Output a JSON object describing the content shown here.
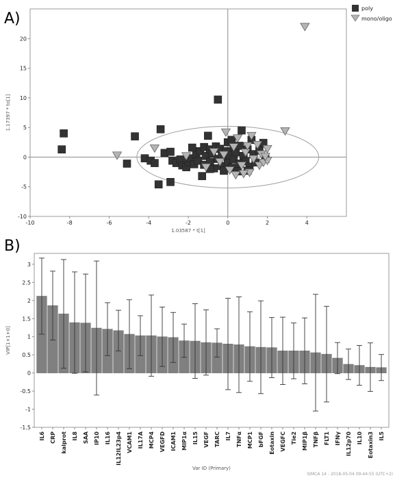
{
  "chart_data": [
    {
      "type": "scatter",
      "panel_label": "A)",
      "xlabel": "1.03587 * t[1]",
      "ylabel": "1.17397 * to[1]",
      "xlim": [
        -10,
        6
      ],
      "ylim": [
        -10,
        25
      ],
      "xticks": [
        -10,
        -8,
        -6,
        -4,
        -2,
        0,
        2,
        4
      ],
      "yticks": [
        -10,
        -5,
        0,
        5,
        10,
        15,
        20
      ],
      "grid": false,
      "legend_position": "top-right",
      "ellipse": {
        "cx": 0,
        "cy": 0,
        "rx": 4.6,
        "ry": 5.2
      },
      "series": [
        {
          "name": "poly",
          "marker": "square",
          "color": "#333333",
          "points": [
            [
              -8.3,
              4.0
            ],
            [
              -8.4,
              1.3
            ],
            [
              -5.1,
              -1.1
            ],
            [
              -4.7,
              3.5
            ],
            [
              -4.2,
              -0.2
            ],
            [
              -3.9,
              -0.6
            ],
            [
              -3.7,
              -1.0
            ],
            [
              -3.5,
              -4.6
            ],
            [
              -3.4,
              4.7
            ],
            [
              -3.2,
              0.7
            ],
            [
              -2.9,
              -4.2
            ],
            [
              -2.9,
              0.9
            ],
            [
              -2.8,
              -0.6
            ],
            [
              -2.6,
              -1.0
            ],
            [
              -2.4,
              -0.4
            ],
            [
              -2.3,
              -1.4
            ],
            [
              -2.1,
              -1.7
            ],
            [
              -2.0,
              -0.8
            ],
            [
              -1.9,
              -0.2
            ],
            [
              -1.7,
              -1.2
            ],
            [
              -1.6,
              0.4
            ],
            [
              -1.5,
              -0.6
            ],
            [
              -1.4,
              1.0
            ],
            [
              -1.3,
              -3.2
            ],
            [
              -1.2,
              1.7
            ],
            [
              -1.2,
              -1.3
            ],
            [
              -1.1,
              0.2
            ],
            [
              -1.0,
              3.6
            ],
            [
              -0.9,
              -0.8
            ],
            [
              -0.9,
              1.3
            ],
            [
              -0.8,
              0.6
            ],
            [
              -0.7,
              -1.9
            ],
            [
              -0.6,
              1.8
            ],
            [
              -0.5,
              9.7
            ],
            [
              -0.5,
              -0.3
            ],
            [
              -0.4,
              1.4
            ],
            [
              -0.3,
              -1.5
            ],
            [
              -0.3,
              0.2
            ],
            [
              -0.2,
              -2.3
            ],
            [
              -0.1,
              1.0
            ],
            [
              0.0,
              -0.9
            ],
            [
              0.0,
              2.5
            ],
            [
              0.1,
              0.3
            ],
            [
              0.2,
              -1.8
            ],
            [
              0.3,
              1.6
            ],
            [
              0.3,
              -0.4
            ],
            [
              0.4,
              0.8
            ],
            [
              0.5,
              -2.4
            ],
            [
              0.6,
              1.9
            ],
            [
              0.6,
              -1.1
            ],
            [
              0.7,
              4.5
            ],
            [
              0.8,
              0.2
            ],
            [
              0.9,
              -0.7
            ],
            [
              1.0,
              1.3
            ],
            [
              1.1,
              -1.6
            ],
            [
              1.2,
              2.9
            ],
            [
              1.3,
              0.5
            ],
            [
              1.4,
              -0.9
            ],
            [
              1.6,
              1.1
            ],
            [
              1.8,
              2.4
            ],
            [
              1.9,
              -0.3
            ],
            [
              -1.8,
              1.6
            ],
            [
              -0.9,
              -2.0
            ],
            [
              0.2,
              2.9
            ],
            [
              1.0,
              -2.3
            ]
          ]
        },
        {
          "name": "mono/oligo",
          "marker": "triangle-down",
          "color": "#b4b4b4",
          "points": [
            [
              3.9,
              22.0
            ],
            [
              2.9,
              4.4
            ],
            [
              -5.6,
              0.3
            ],
            [
              -3.7,
              1.5
            ],
            [
              -2.1,
              0.2
            ],
            [
              -0.1,
              4.2
            ],
            [
              0.5,
              3.2
            ],
            [
              1.2,
              3.6
            ],
            [
              -1.1,
              -1.7
            ],
            [
              -0.4,
              -0.8
            ],
            [
              0.1,
              -2.2
            ],
            [
              0.3,
              1.7
            ],
            [
              0.7,
              -1.4
            ],
            [
              0.9,
              0.8
            ],
            [
              1.1,
              -2.6
            ],
            [
              1.3,
              -0.3
            ],
            [
              1.5,
              2.1
            ],
            [
              1.6,
              -1.4
            ],
            [
              1.7,
              0.5
            ],
            [
              1.8,
              -0.9
            ],
            [
              2.0,
              1.4
            ],
            [
              2.0,
              -0.6
            ],
            [
              0.4,
              -3.0
            ],
            [
              0.8,
              -2.8
            ],
            [
              -0.2,
              0.4
            ],
            [
              -0.7,
              0.9
            ],
            [
              1.0,
              1.9
            ],
            [
              1.9,
              0.1
            ]
          ]
        }
      ]
    },
    {
      "type": "bar",
      "panel_label": "B)",
      "xlabel": "Var ID (Primary)",
      "ylabel": "VIP[1+1+0]",
      "ylim": [
        -1.5,
        3.3
      ],
      "yticks": [
        -1.5,
        -1,
        -0.5,
        0,
        0.5,
        1,
        1.5,
        2,
        2.5,
        3
      ],
      "ytick_labels": [
        "-1.5",
        "-1",
        "-0.5",
        "0",
        "0.5",
        "1",
        "1.5",
        "2",
        "2.5",
        "3"
      ],
      "bar_color": "#808080",
      "grid": false,
      "categories": [
        "IL6",
        "CRP",
        "kalprot",
        "IL8",
        "SAA",
        "IP10",
        "IL16",
        "IL12IL23p4",
        "VCAM1",
        "IL17A",
        "MCP4",
        "VEGFD",
        "ICAM1",
        "MIP1α",
        "IL15",
        "VEGF",
        "TARC",
        "IL7",
        "TNFα",
        "MCP1",
        "bFGF",
        "Eotaxin",
        "VEGFC",
        "Tie2",
        "MIP1β",
        "TNFβ",
        "FLT1",
        "IFNγ",
        "IL12p70",
        "IL10",
        "Eotaxin3",
        "IL5"
      ],
      "values": [
        2.12,
        1.86,
        1.63,
        1.39,
        1.38,
        1.24,
        1.21,
        1.17,
        1.07,
        1.03,
        1.03,
        1.0,
        0.98,
        0.89,
        0.88,
        0.84,
        0.83,
        0.8,
        0.78,
        0.73,
        0.71,
        0.7,
        0.61,
        0.61,
        0.61,
        0.56,
        0.52,
        0.41,
        0.24,
        0.21,
        0.16,
        0.15
      ],
      "error": [
        1.05,
        0.95,
        1.5,
        1.4,
        1.35,
        1.85,
        0.73,
        0.56,
        0.95,
        0.55,
        1.12,
        0.82,
        0.69,
        0.46,
        1.03,
        0.9,
        0.39,
        1.26,
        1.32,
        0.96,
        1.28,
        0.83,
        0.93,
        0.77,
        0.91,
        1.61,
        1.32,
        0.43,
        0.42,
        0.55,
        0.67,
        0.36
      ]
    }
  ],
  "footer": "SIMCA 14 - 2018-05-04 09:44:55 (UTC+2)"
}
